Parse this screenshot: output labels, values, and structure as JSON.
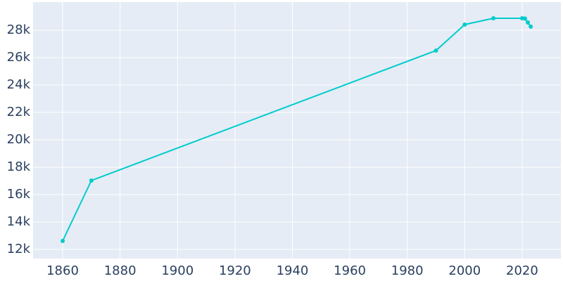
{
  "chart_data": {
    "type": "line",
    "x": [
      1860,
      1870,
      1990,
      2000,
      2010,
      2020,
      2021,
      2022,
      2023
    ],
    "series": [
      {
        "color": "#00cccc",
        "values": [
          12615,
          17026,
          26513,
          28410,
          28872,
          28870,
          28850,
          28560,
          28260
        ]
      }
    ],
    "xlim": [
      1849.7,
      2033.5
    ],
    "ylim": [
      11333,
      30050
    ],
    "xticks": [
      1860,
      1880,
      1900,
      1920,
      1940,
      1960,
      1980,
      2000,
      2020
    ],
    "yticks": [
      {
        "value": 12000,
        "label": "12k"
      },
      {
        "value": 14000,
        "label": "14k"
      },
      {
        "value": 16000,
        "label": "16k"
      },
      {
        "value": 18000,
        "label": "18k"
      },
      {
        "value": 20000,
        "label": "20k"
      },
      {
        "value": 22000,
        "label": "22k"
      },
      {
        "value": 24000,
        "label": "24k"
      },
      {
        "value": 26000,
        "label": "26k"
      },
      {
        "value": 28000,
        "label": "28k"
      }
    ],
    "grid": true
  }
}
